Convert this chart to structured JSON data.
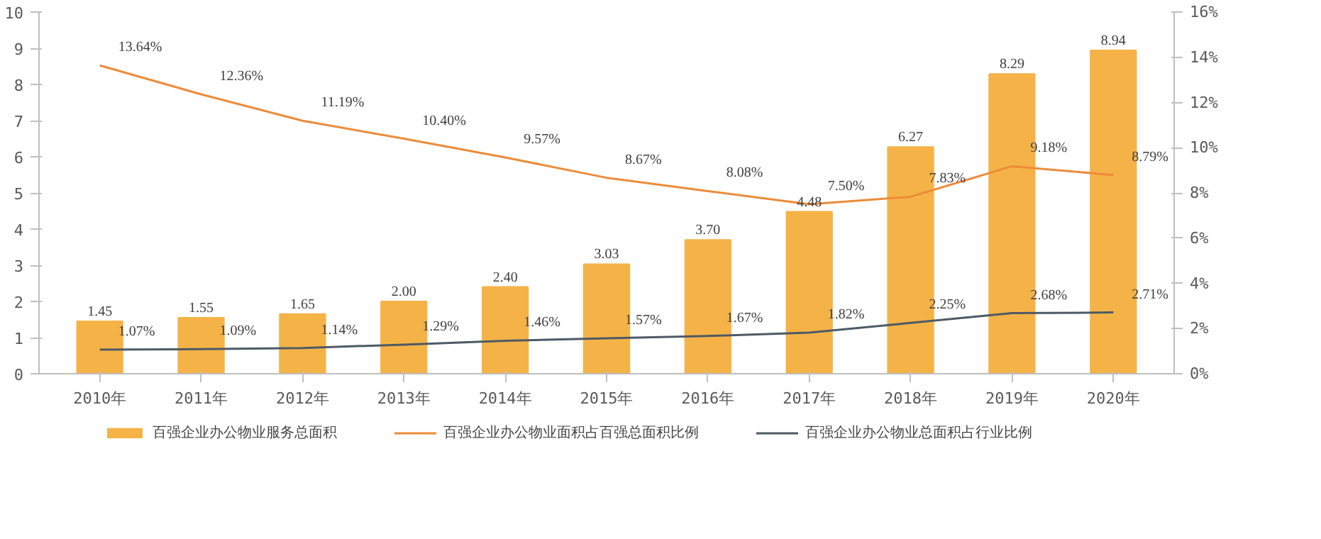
{
  "chart_data": {
    "type": "bar",
    "categories": [
      "2010年",
      "2011年",
      "2012年",
      "2013年",
      "2014年",
      "2015年",
      "2016年",
      "2017年",
      "2018年",
      "2019年",
      "2020年"
    ],
    "series": [
      {
        "name": "百强企业办公物业服务总面积",
        "type": "bar",
        "color": "#f5b347",
        "values": [
          1.45,
          1.55,
          1.65,
          2.0,
          2.4,
          3.03,
          3.7,
          4.48,
          6.27,
          8.29,
          8.94
        ],
        "value_labels": [
          "1.45",
          "1.55",
          "1.65",
          "2.00",
          "2.40",
          "3.03",
          "3.70",
          "4.48",
          "6.27",
          "8.29",
          "8.94"
        ]
      },
      {
        "name": "百强企业办公物业面积占百强总面积比例",
        "type": "line",
        "axis": "y2",
        "color": "#ed8b3a",
        "values": [
          13.64,
          12.36,
          11.19,
          10.4,
          9.57,
          8.67,
          8.08,
          7.5,
          7.83,
          9.18,
          8.79
        ],
        "value_labels": [
          "13.64%",
          "12.36%",
          "11.19%",
          "10.40%",
          "9.57%",
          "8.67%",
          "8.08%",
          "7.50%",
          "7.83%",
          "9.18%",
          "8.79%"
        ]
      },
      {
        "name": "百强企业办公物业总面积占行业比例",
        "type": "line",
        "axis": "y2",
        "color": "#4d5a66",
        "values": [
          1.07,
          1.09,
          1.14,
          1.29,
          1.46,
          1.57,
          1.67,
          1.82,
          2.25,
          2.68,
          2.71
        ],
        "value_labels": [
          "1.07%",
          "1.09%",
          "1.14%",
          "1.29%",
          "1.46%",
          "1.57%",
          "1.67%",
          "1.82%",
          "2.25%",
          "2.68%",
          "2.71%"
        ]
      }
    ],
    "ylim": [
      0,
      10
    ],
    "yticks": [
      0,
      1,
      2,
      3,
      4,
      5,
      6,
      7,
      8,
      9,
      10
    ],
    "y2lim": [
      0,
      16
    ],
    "y2ticks": [
      {
        "value": 0,
        "label": "0%"
      },
      {
        "value": 2,
        "label": "2%"
      },
      {
        "value": 4,
        "label": "4%"
      },
      {
        "value": 6,
        "label": "6%"
      },
      {
        "value": 8,
        "label": "8%"
      },
      {
        "value": 10,
        "label": "10%"
      },
      {
        "value": 12,
        "label": "12%"
      },
      {
        "value": 14,
        "label": "14%"
      },
      {
        "value": 16,
        "label": "16%"
      }
    ],
    "grid": false,
    "legend": "bottom"
  }
}
